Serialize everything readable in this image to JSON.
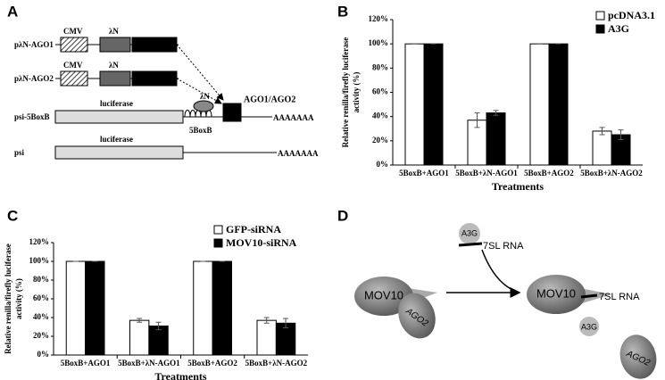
{
  "panels": [
    "A",
    "B",
    "C",
    "D"
  ],
  "diagram_a": {
    "constructs": [
      "pλN-AGO1",
      "pλN-AGO2",
      "psi-5BoxB",
      "psi"
    ],
    "cmv": "CMV",
    "lambda_n": "λN",
    "luciferase": "luciferase",
    "boxb": "5BoxB",
    "ago": "AGO1/AGO2",
    "polya": "AAAAAAA"
  },
  "diagram_d": {
    "mov10": "MOV10",
    "ago2": "AGO2",
    "a3g": "A3G",
    "rna": "7SL RNA"
  },
  "chart_data": [
    {
      "type": "bar",
      "categories": [
        "5BoxB+AGO1",
        "5BoxB+λN-AGO1",
        "5BoxB+AGO2",
        "5BoxB+λN-AGO2"
      ],
      "series": [
        {
          "name": "pcDNA3.1",
          "color": "#ffffff",
          "values": [
            100,
            37,
            100,
            28
          ],
          "errors": [
            0,
            6,
            0,
            3
          ]
        },
        {
          "name": "A3G",
          "color": "#000000",
          "values": [
            100,
            43,
            100,
            25
          ],
          "errors": [
            0,
            2,
            0,
            4
          ]
        }
      ],
      "xlabel": "Treatments",
      "ylabel": [
        "Relative renilla/firefly luciferase",
        "activity (%)"
      ],
      "ylim": [
        0,
        120
      ],
      "yticks": [
        {
          "value": 0,
          "label": "0%"
        },
        {
          "value": 20,
          "label": "20%"
        },
        {
          "value": 40,
          "label": "40%"
        },
        {
          "value": 60,
          "label": "60%"
        },
        {
          "value": 80,
          "label": "80%"
        },
        {
          "value": 100,
          "label": "100%"
        },
        {
          "value": 120,
          "label": "120%"
        }
      ],
      "legend": "top-right"
    },
    {
      "type": "bar",
      "categories": [
        "5BoxB+AGO1",
        "5BoxB+λN-AGO1",
        "5BoxB+AGO2",
        "5BoxB+λN-AGO2"
      ],
      "series": [
        {
          "name": "GFP-siRNA",
          "color": "#ffffff",
          "values": [
            100,
            37,
            100,
            37
          ],
          "errors": [
            0,
            2,
            0,
            3
          ]
        },
        {
          "name": "MOV10-siRNA",
          "color": "#000000",
          "values": [
            100,
            31,
            100,
            34
          ],
          "errors": [
            0,
            4,
            0,
            5
          ]
        }
      ],
      "xlabel": "Treatments",
      "ylabel": [
        "Relative renilla/firefly luciferase",
        "activity (%)"
      ],
      "ylim": [
        0,
        120
      ],
      "yticks": [
        {
          "value": 0,
          "label": "0%"
        },
        {
          "value": 20,
          "label": "20%"
        },
        {
          "value": 40,
          "label": "40%"
        },
        {
          "value": 60,
          "label": "60%"
        },
        {
          "value": 80,
          "label": "80%"
        },
        {
          "value": 100,
          "label": "100%"
        },
        {
          "value": 120,
          "label": "120%"
        }
      ],
      "legend": "top-right"
    }
  ]
}
